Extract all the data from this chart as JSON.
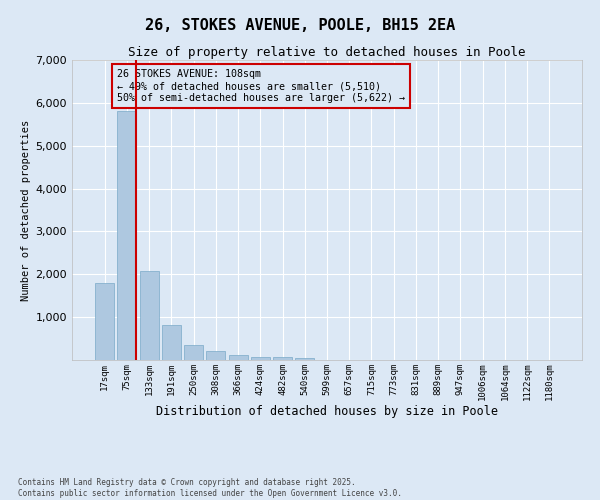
{
  "title": "26, STOKES AVENUE, POOLE, BH15 2EA",
  "subtitle": "Size of property relative to detached houses in Poole",
  "xlabel": "Distribution of detached houses by size in Poole",
  "ylabel": "Number of detached properties",
  "categories": [
    "17sqm",
    "75sqm",
    "133sqm",
    "191sqm",
    "250sqm",
    "308sqm",
    "366sqm",
    "424sqm",
    "482sqm",
    "540sqm",
    "599sqm",
    "657sqm",
    "715sqm",
    "773sqm",
    "831sqm",
    "889sqm",
    "947sqm",
    "1006sqm",
    "1064sqm",
    "1122sqm",
    "1180sqm"
  ],
  "values": [
    1800,
    5820,
    2080,
    820,
    360,
    220,
    110,
    75,
    75,
    55,
    0,
    0,
    0,
    0,
    0,
    0,
    0,
    0,
    0,
    0,
    0
  ],
  "bar_color": "#aec8e0",
  "bar_edge_color": "#7aaac8",
  "vline_color": "#cc0000",
  "annotation_title": "26 STOKES AVENUE: 108sqm",
  "annotation_line2": "← 49% of detached houses are smaller (5,510)",
  "annotation_line3": "50% of semi-detached houses are larger (5,622) →",
  "annotation_box_color": "#cc0000",
  "ylim": [
    0,
    7000
  ],
  "yticks": [
    0,
    1000,
    2000,
    3000,
    4000,
    5000,
    6000,
    7000
  ],
  "bg_color": "#dce8f5",
  "grid_color": "#ffffff",
  "footnote1": "Contains HM Land Registry data © Crown copyright and database right 2025.",
  "footnote2": "Contains public sector information licensed under the Open Government Licence v3.0."
}
